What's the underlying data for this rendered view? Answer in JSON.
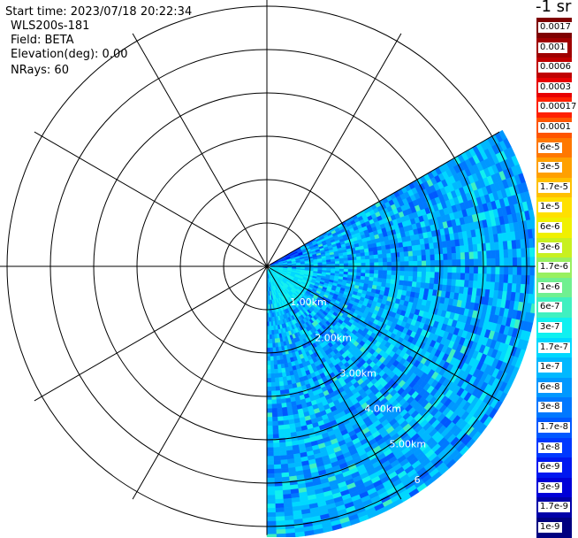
{
  "header": {
    "start_time": "Start time: 2023/07/18 20:22:34",
    "instrument": "WLS200s-181",
    "field": "Field: BETA",
    "elevation": "Elevation(deg): 0.00",
    "nrays": "NRays: 60"
  },
  "colorbar": {
    "title": "-1 sr",
    "labels": [
      "0.0017",
      "0.001",
      "0.0006",
      "0.0003",
      "0.00017",
      "0.0001",
      "6e-5",
      "3e-5",
      "1.7e-5",
      "1e-5",
      "6e-6",
      "3e-6",
      "1.7e-6",
      "1e-6",
      "6e-7",
      "3e-7",
      "1.7e-7",
      "1e-7",
      "6e-8",
      "3e-8",
      "1.7e-8",
      "1e-8",
      "6e-9",
      "3e-9",
      "1.7e-9",
      "1e-9"
    ],
    "colors": [
      "#7f0000",
      "#a00000",
      "#c00000",
      "#e80000",
      "#ff2000",
      "#ff5500",
      "#ff7800",
      "#ffa000",
      "#ffc000",
      "#ffe000",
      "#f0f000",
      "#c8f020",
      "#98f060",
      "#70f090",
      "#40f0c0",
      "#10f0f0",
      "#00d8ff",
      "#00b8ff",
      "#0098ff",
      "#0078ff",
      "#0058ff",
      "#0038ff",
      "#0018f0",
      "#0000d8",
      "#0000a8",
      "#000080"
    ]
  },
  "chart_data": {
    "type": "heatmap",
    "projection": "polar-ppi",
    "field": "BETA",
    "units": "-1 sr",
    "range_rings_km": [
      1,
      2,
      3,
      4,
      5,
      6
    ],
    "range_labels": [
      "1.00km",
      "2.00km",
      "3.00km",
      "4.00km",
      "5.00km",
      "6"
    ],
    "max_range_km": 6.2,
    "scan_azimuth_start_deg": 60,
    "scan_azimuth_end_deg": 180,
    "nrays": 60,
    "spoke_angles_deg": [
      0,
      30,
      60,
      90,
      120,
      150,
      180,
      210,
      240,
      270,
      300,
      330
    ],
    "dominant_value_range": [
      "3e-8",
      "3e-7"
    ],
    "color_scale": "log"
  }
}
